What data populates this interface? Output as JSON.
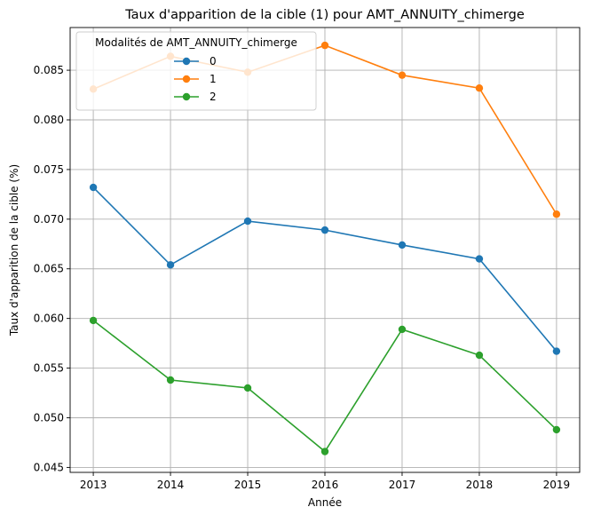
{
  "chart_data": {
    "type": "line",
    "title": "Taux d'apparition de la cible (1) pour AMT_ANNUITY_chimerge",
    "xlabel": "Année",
    "ylabel": "Taux d'apparition de la cible (%)",
    "x": [
      2013,
      2014,
      2015,
      2016,
      2017,
      2018,
      2019
    ],
    "x_tick_labels": [
      "2013",
      "2014",
      "2015",
      "2016",
      "2017",
      "2018",
      "2019"
    ],
    "ylim": [
      0.0445,
      0.0893
    ],
    "y_ticks": [
      0.045,
      0.05,
      0.055,
      0.06,
      0.065,
      0.07,
      0.075,
      0.08,
      0.085
    ],
    "y_tick_labels": [
      "0.045",
      "0.050",
      "0.055",
      "0.060",
      "0.065",
      "0.070",
      "0.075",
      "0.080",
      "0.085"
    ],
    "grid": true,
    "legend": {
      "title": "Modalités de AMT_ANNUITY_chimerge",
      "placement": "top-left"
    },
    "series": [
      {
        "name": "0",
        "color": "#1f77b4",
        "values": [
          0.0732,
          0.0654,
          0.0698,
          0.0689,
          0.0674,
          0.066,
          0.0567
        ]
      },
      {
        "name": "1",
        "color": "#ff7f0e",
        "values": [
          0.0831,
          0.0864,
          0.0848,
          0.0875,
          0.0845,
          0.0832,
          0.0705
        ]
      },
      {
        "name": "2",
        "color": "#2ca02c",
        "values": [
          0.0598,
          0.0538,
          0.053,
          0.0466,
          0.0589,
          0.0563,
          0.0488
        ]
      }
    ]
  }
}
